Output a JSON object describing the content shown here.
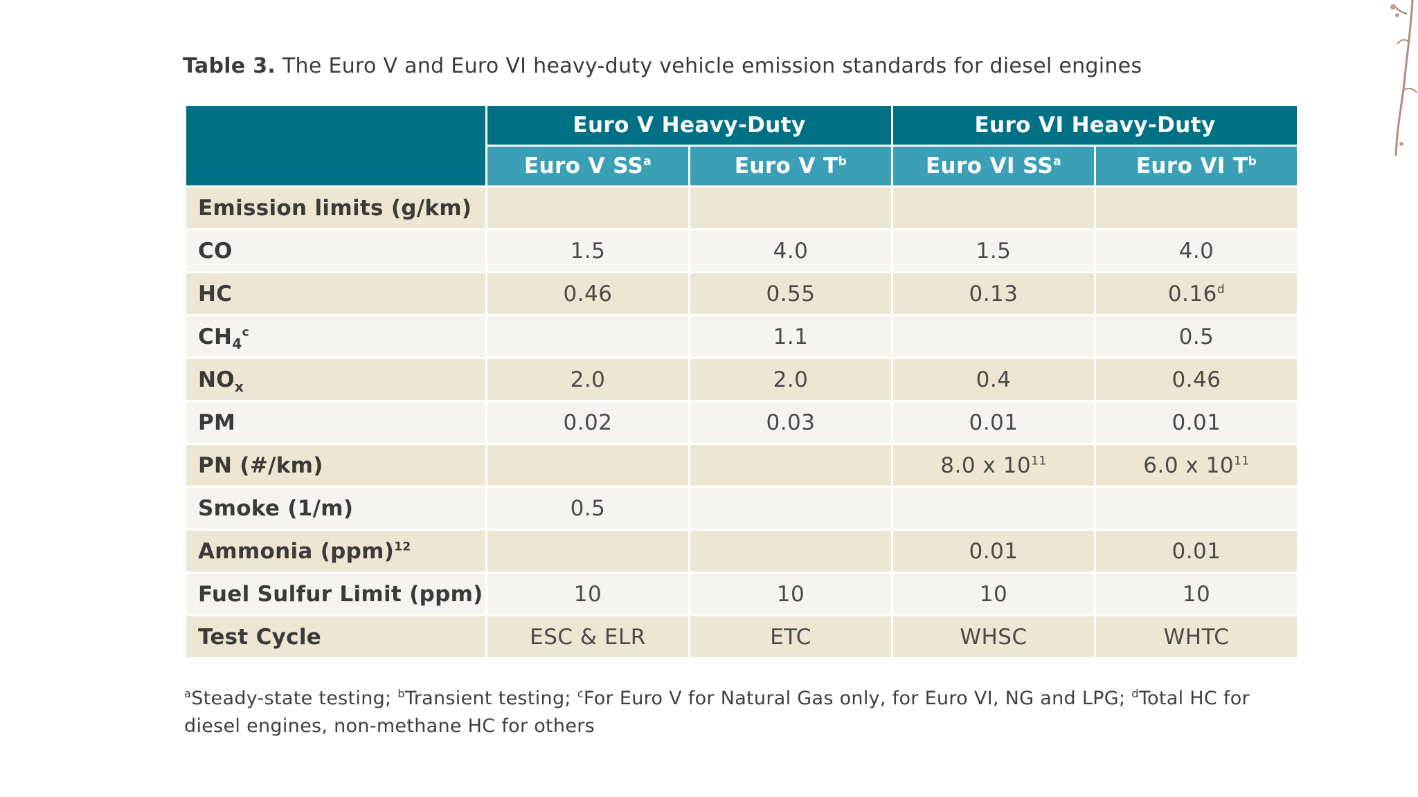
{
  "caption": {
    "label": "Table 3.",
    "text": "The Euro V and Euro VI heavy-duty vehicle emission standards for diesel engines"
  },
  "table": {
    "groups": [
      "Euro V Heavy-Duty",
      "Euro VI Heavy-Duty"
    ],
    "columns": [
      {
        "name": "Euro V SS",
        "mark": "a"
      },
      {
        "name": "Euro V T",
        "mark": "b"
      },
      {
        "name": "Euro VI SS",
        "mark": "a"
      },
      {
        "name": "Euro VI T",
        "mark": "b"
      }
    ],
    "rows": [
      {
        "label": "Emission limits (g/km)",
        "values": [
          "",
          "",
          "",
          ""
        ]
      },
      {
        "label": "CO",
        "values": [
          "1.5",
          "4.0",
          "1.5",
          "4.0"
        ]
      },
      {
        "label": "HC",
        "values": [
          "0.46",
          "0.55",
          "0.13",
          "0.16"
        ],
        "value_marks": [
          "",
          "",
          "",
          "d"
        ]
      },
      {
        "label_main": "CH",
        "label_sub": "4",
        "label_sup": "c",
        "values": [
          "",
          "1.1",
          "",
          "0.5"
        ]
      },
      {
        "label_main": "NO",
        "label_sub": "x",
        "values": [
          "2.0",
          "2.0",
          "0.4",
          "0.46"
        ]
      },
      {
        "label": "PM",
        "values": [
          "0.02",
          "0.03",
          "0.01",
          "0.01"
        ]
      },
      {
        "label": "PN (#/km)",
        "values": [
          "",
          "",
          "8.0 x 10",
          "6.0 x 10"
        ],
        "value_marks": [
          "",
          "",
          "11",
          "11"
        ]
      },
      {
        "label": "Smoke (1/m)",
        "values": [
          "0.5",
          "",
          "",
          ""
        ]
      },
      {
        "label": "Ammonia (ppm)",
        "label_sup": "12",
        "values": [
          "",
          "",
          "0.01",
          "0.01"
        ]
      },
      {
        "label": "Fuel Sulfur Limit (ppm)",
        "values": [
          "10",
          "10",
          "10",
          "10"
        ]
      },
      {
        "label": "Test Cycle",
        "values": [
          "ESC & ELR",
          "ETC",
          "WHSC",
          "WHTC"
        ]
      }
    ]
  },
  "footnotes": [
    {
      "mark": "a",
      "text": "Steady-state testing; "
    },
    {
      "mark": "b",
      "text": "Transient testing; "
    },
    {
      "mark": "c",
      "text": "For Euro V for Natural Gas only, for Euro VI, NG and LPG; "
    },
    {
      "mark": "d",
      "text": "Total HC for diesel engines, non-methane HC for others"
    }
  ],
  "colors": {
    "header_dark": "#007185",
    "header_light": "#3b9fb5",
    "row_tan": "#ece6d2",
    "row_light": "#f6f4ef"
  },
  "decoration": {
    "top_right": "branch-illustration"
  }
}
